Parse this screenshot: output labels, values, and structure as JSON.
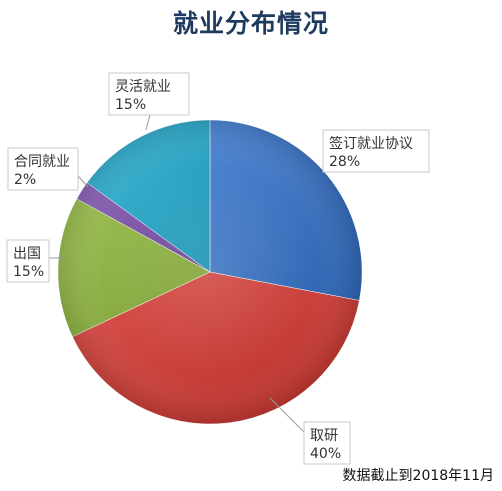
{
  "footnote": "数据截止到2018年11月",
  "colors": {
    "签订就业协议": "#3d73c0",
    "取研": "#c9403b",
    "出国": "#8db045",
    "合同就业": "#7d56a6",
    "灵活就业": "#2fa7c6",
    "label_border": "#c8c8c8",
    "leader_line": "#9a9a9a"
  },
  "chart_data": {
    "type": "pie",
    "title": "就业分布情况",
    "slices": [
      {
        "label": "签订就业协议",
        "value": 28,
        "value_label": "28%"
      },
      {
        "label": "取研",
        "value": 40,
        "value_label": "40%"
      },
      {
        "label": "出国",
        "value": 15,
        "value_label": "15%"
      },
      {
        "label": "合同就业",
        "value": 2,
        "value_label": "2%"
      },
      {
        "label": "灵活就业",
        "value": 15,
        "value_label": "15%"
      }
    ],
    "start_angle_deg": 0,
    "direction": "clockwise",
    "legend": "none",
    "data_labels": "callout boxes with category name and percentage"
  }
}
